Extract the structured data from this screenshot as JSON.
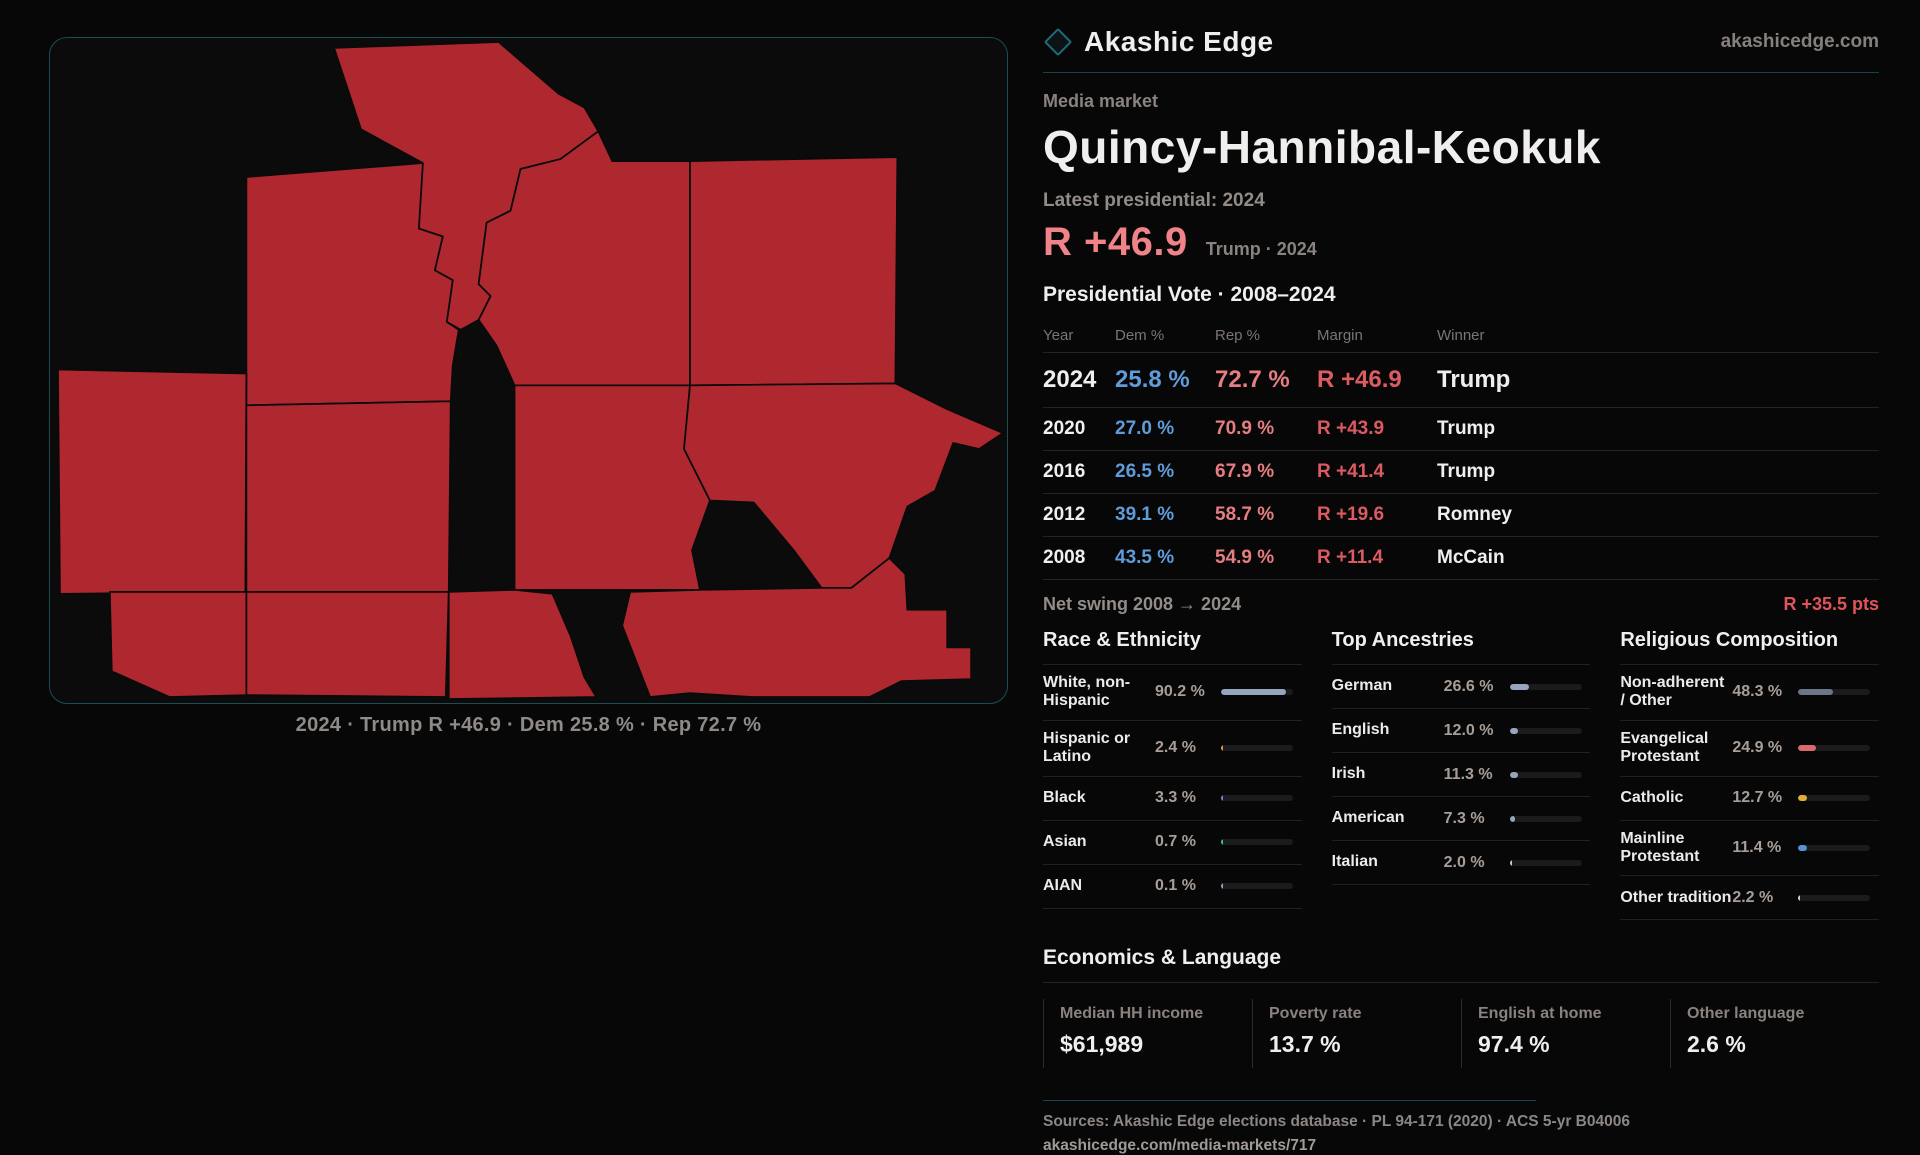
{
  "brand": {
    "name": "Akashic Edge",
    "domain": "akashicedge.com"
  },
  "header": {
    "kicker": "Media market",
    "title": "Quincy-Hannibal-Keokuk",
    "latest_label": "Latest presidential: 2024",
    "margin_big": "R +46.9",
    "margin_caption": "Trump · 2024"
  },
  "map": {
    "caption": "2024 · Trump R +46.9 · Dem 25.8 % · Rep 72.7 %",
    "county_fill": "#b0282f"
  },
  "table": {
    "title": "Presidential Vote · 2008–2024",
    "columns": {
      "year": "Year",
      "dem": "Dem %",
      "rep": "Rep %",
      "margin": "Margin",
      "winner": "Winner"
    },
    "rows": [
      {
        "year": "2024",
        "dem": "25.8 %",
        "rep": "72.7 %",
        "margin": "R +46.9",
        "winner": "Trump"
      },
      {
        "year": "2020",
        "dem": "27.0 %",
        "rep": "70.9 %",
        "margin": "R +43.9",
        "winner": "Trump"
      },
      {
        "year": "2016",
        "dem": "26.5 %",
        "rep": "67.9 %",
        "margin": "R +41.4",
        "winner": "Trump"
      },
      {
        "year": "2012",
        "dem": "39.1 %",
        "rep": "58.7 %",
        "margin": "R +19.6",
        "winner": "Romney"
      },
      {
        "year": "2008",
        "dem": "43.5 %",
        "rep": "54.9 %",
        "margin": "R +11.4",
        "winner": "McCain"
      }
    ]
  },
  "net_swing": {
    "label": "Net swing 2008 → 2024",
    "value": "R +35.5 pts"
  },
  "demographics": {
    "race": {
      "title": "Race & Ethnicity",
      "rows": [
        {
          "label": "White, non-Hispanic",
          "value": "90.2 %",
          "pct": 90.2,
          "color": "#97a6bd"
        },
        {
          "label": "Hispanic or Latino",
          "value": "2.4 %",
          "pct": 2.4,
          "color": "#e69830"
        },
        {
          "label": "Black",
          "value": "3.3 %",
          "pct": 3.3,
          "color": "#8b7ae0"
        },
        {
          "label": "Asian",
          "value": "0.7 %",
          "pct": 0.7,
          "color": "#35c79a"
        },
        {
          "label": "AIAN",
          "value": "0.1 %",
          "pct": 0.1,
          "color": "#97a6bd"
        }
      ]
    },
    "ancestry": {
      "title": "Top Ancestries",
      "rows": [
        {
          "label": "German",
          "value": "26.6 %",
          "pct": 26.6,
          "color": "#97a6bd"
        },
        {
          "label": "English",
          "value": "12.0 %",
          "pct": 12.0,
          "color": "#97a6bd"
        },
        {
          "label": "Irish",
          "value": "11.3 %",
          "pct": 11.3,
          "color": "#97a6bd"
        },
        {
          "label": "American",
          "value": "7.3 %",
          "pct": 7.3,
          "color": "#97a6bd"
        },
        {
          "label": "Italian",
          "value": "2.0 %",
          "pct": 2.0,
          "color": "#c8cdd4"
        }
      ]
    },
    "religion": {
      "title": "Religious Composition",
      "rows": [
        {
          "label": "Non-adherent / Other",
          "value": "48.3 %",
          "pct": 48.3,
          "color": "#6b7789"
        },
        {
          "label": "Evangelical Protestant",
          "value": "24.9 %",
          "pct": 24.9,
          "color": "#d96a70"
        },
        {
          "label": "Catholic",
          "value": "12.7 %",
          "pct": 12.7,
          "color": "#dfaf35"
        },
        {
          "label": "Mainline Protestant",
          "value": "11.4 %",
          "pct": 11.4,
          "color": "#5592d8"
        },
        {
          "label": "Other tradition",
          "value": "2.2 %",
          "pct": 2.2,
          "color": "#c8cdd4"
        }
      ]
    }
  },
  "economics": {
    "title": "Economics & Language",
    "stats": [
      {
        "label": "Median HH income",
        "value": "$61,989"
      },
      {
        "label": "Poverty rate",
        "value": "13.7 %"
      },
      {
        "label": "English at home",
        "value": "97.4 %"
      },
      {
        "label": "Other language",
        "value": "2.6 %"
      }
    ]
  },
  "footer": {
    "sources": "Sources: Akashic Edge elections database · PL 94-171 (2020) · ACS 5-yr B04006",
    "permalink": "akashicedge.com/media-markets/717"
  },
  "chart_data": [
    {
      "type": "table",
      "title": "Presidential Vote · 2008–2024",
      "columns": [
        "Year",
        "Dem %",
        "Rep %",
        "Margin",
        "Winner"
      ],
      "rows": [
        [
          "2024",
          25.8,
          72.7,
          "R +46.9",
          "Trump"
        ],
        [
          "2020",
          27.0,
          70.9,
          "R +43.9",
          "Trump"
        ],
        [
          "2016",
          26.5,
          67.9,
          "R +41.4",
          "Trump"
        ],
        [
          "2012",
          39.1,
          58.7,
          "R +19.6",
          "Romney"
        ],
        [
          "2008",
          43.5,
          54.9,
          "R +11.4",
          "McCain"
        ]
      ]
    },
    {
      "type": "bar",
      "title": "Race & Ethnicity",
      "categories": [
        "White, non-Hispanic",
        "Hispanic or Latino",
        "Black",
        "Asian",
        "AIAN"
      ],
      "values": [
        90.2,
        2.4,
        3.3,
        0.7,
        0.1
      ],
      "unit": "%",
      "xlim": [
        0,
        100
      ]
    },
    {
      "type": "bar",
      "title": "Top Ancestries",
      "categories": [
        "German",
        "English",
        "Irish",
        "American",
        "Italian"
      ],
      "values": [
        26.6,
        12.0,
        11.3,
        7.3,
        2.0
      ],
      "unit": "%",
      "xlim": [
        0,
        100
      ]
    },
    {
      "type": "bar",
      "title": "Religious Composition",
      "categories": [
        "Non-adherent / Other",
        "Evangelical Protestant",
        "Catholic",
        "Mainline Protestant",
        "Other tradition"
      ],
      "values": [
        48.3,
        24.9,
        12.7,
        11.4,
        2.2
      ],
      "unit": "%",
      "xlim": [
        0,
        100
      ]
    },
    {
      "type": "bar",
      "title": "Economics & Language",
      "categories": [
        "Median HH income ($)",
        "Poverty rate %",
        "English at home %",
        "Other language %"
      ],
      "values": [
        61989,
        13.7,
        97.4,
        2.6
      ]
    }
  ]
}
